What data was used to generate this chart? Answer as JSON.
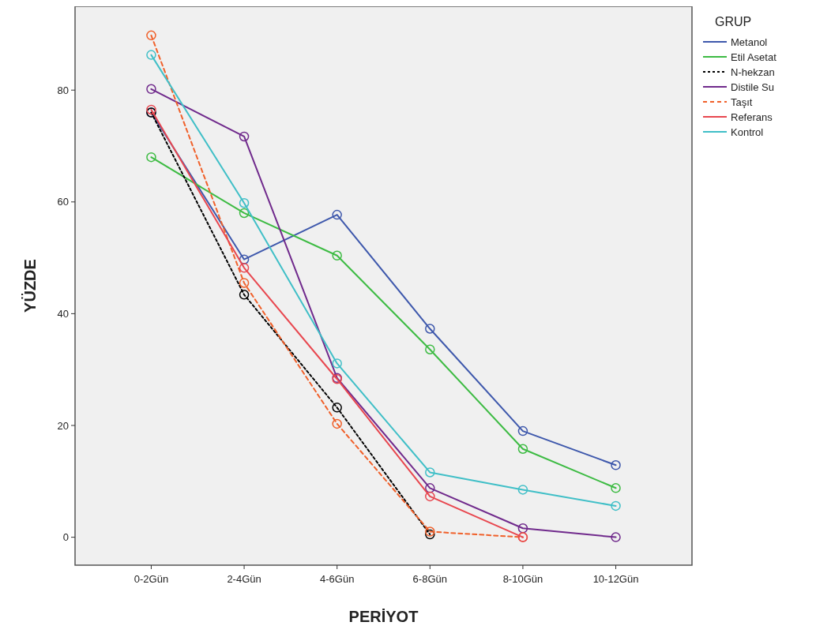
{
  "chart_data": {
    "type": "line",
    "xlabel": "PERİYOT",
    "ylabel": "YÜZDE",
    "legend_title": "GRUP",
    "legend": "right",
    "marker": "circle",
    "grid": false,
    "categories": [
      "0-2Gün",
      "2-4Gün",
      "4-6Gün",
      "6-8Gün",
      "8-10Gün",
      "10-12Gün"
    ],
    "ylim": [
      -5,
      95
    ],
    "yticks": [
      0,
      20,
      40,
      60,
      80
    ],
    "series": [
      {
        "name": "Metanol",
        "color": "#3e58ac",
        "values": [
          76,
          49.7,
          57.7,
          37.3,
          19,
          12.9
        ]
      },
      {
        "name": "Etil Asetat",
        "color": "#3dbb43",
        "values": [
          68,
          58,
          50.4,
          33.6,
          15.8,
          8.8
        ]
      },
      {
        "name": "N-hekzan",
        "color": "#000000",
        "line_style": "dotted",
        "values": [
          76,
          43.4,
          23.2,
          0.5,
          null,
          null
        ]
      },
      {
        "name": "Distile Su",
        "color": "#702a8c",
        "values": [
          80.2,
          71.7,
          28.5,
          8.8,
          1.6,
          0
        ]
      },
      {
        "name": "Taşıt",
        "color": "#f0602a",
        "line_style": "dashed",
        "values": [
          89.8,
          45.5,
          20.3,
          1,
          0,
          null
        ]
      },
      {
        "name": "Referans",
        "color": "#e8474f",
        "values": [
          76.5,
          48.2,
          28.3,
          7.3,
          0,
          null
        ]
      },
      {
        "name": "Kontrol",
        "color": "#40bfc7",
        "values": [
          86.3,
          59.8,
          31.1,
          11.6,
          8.5,
          5.6
        ]
      }
    ]
  }
}
